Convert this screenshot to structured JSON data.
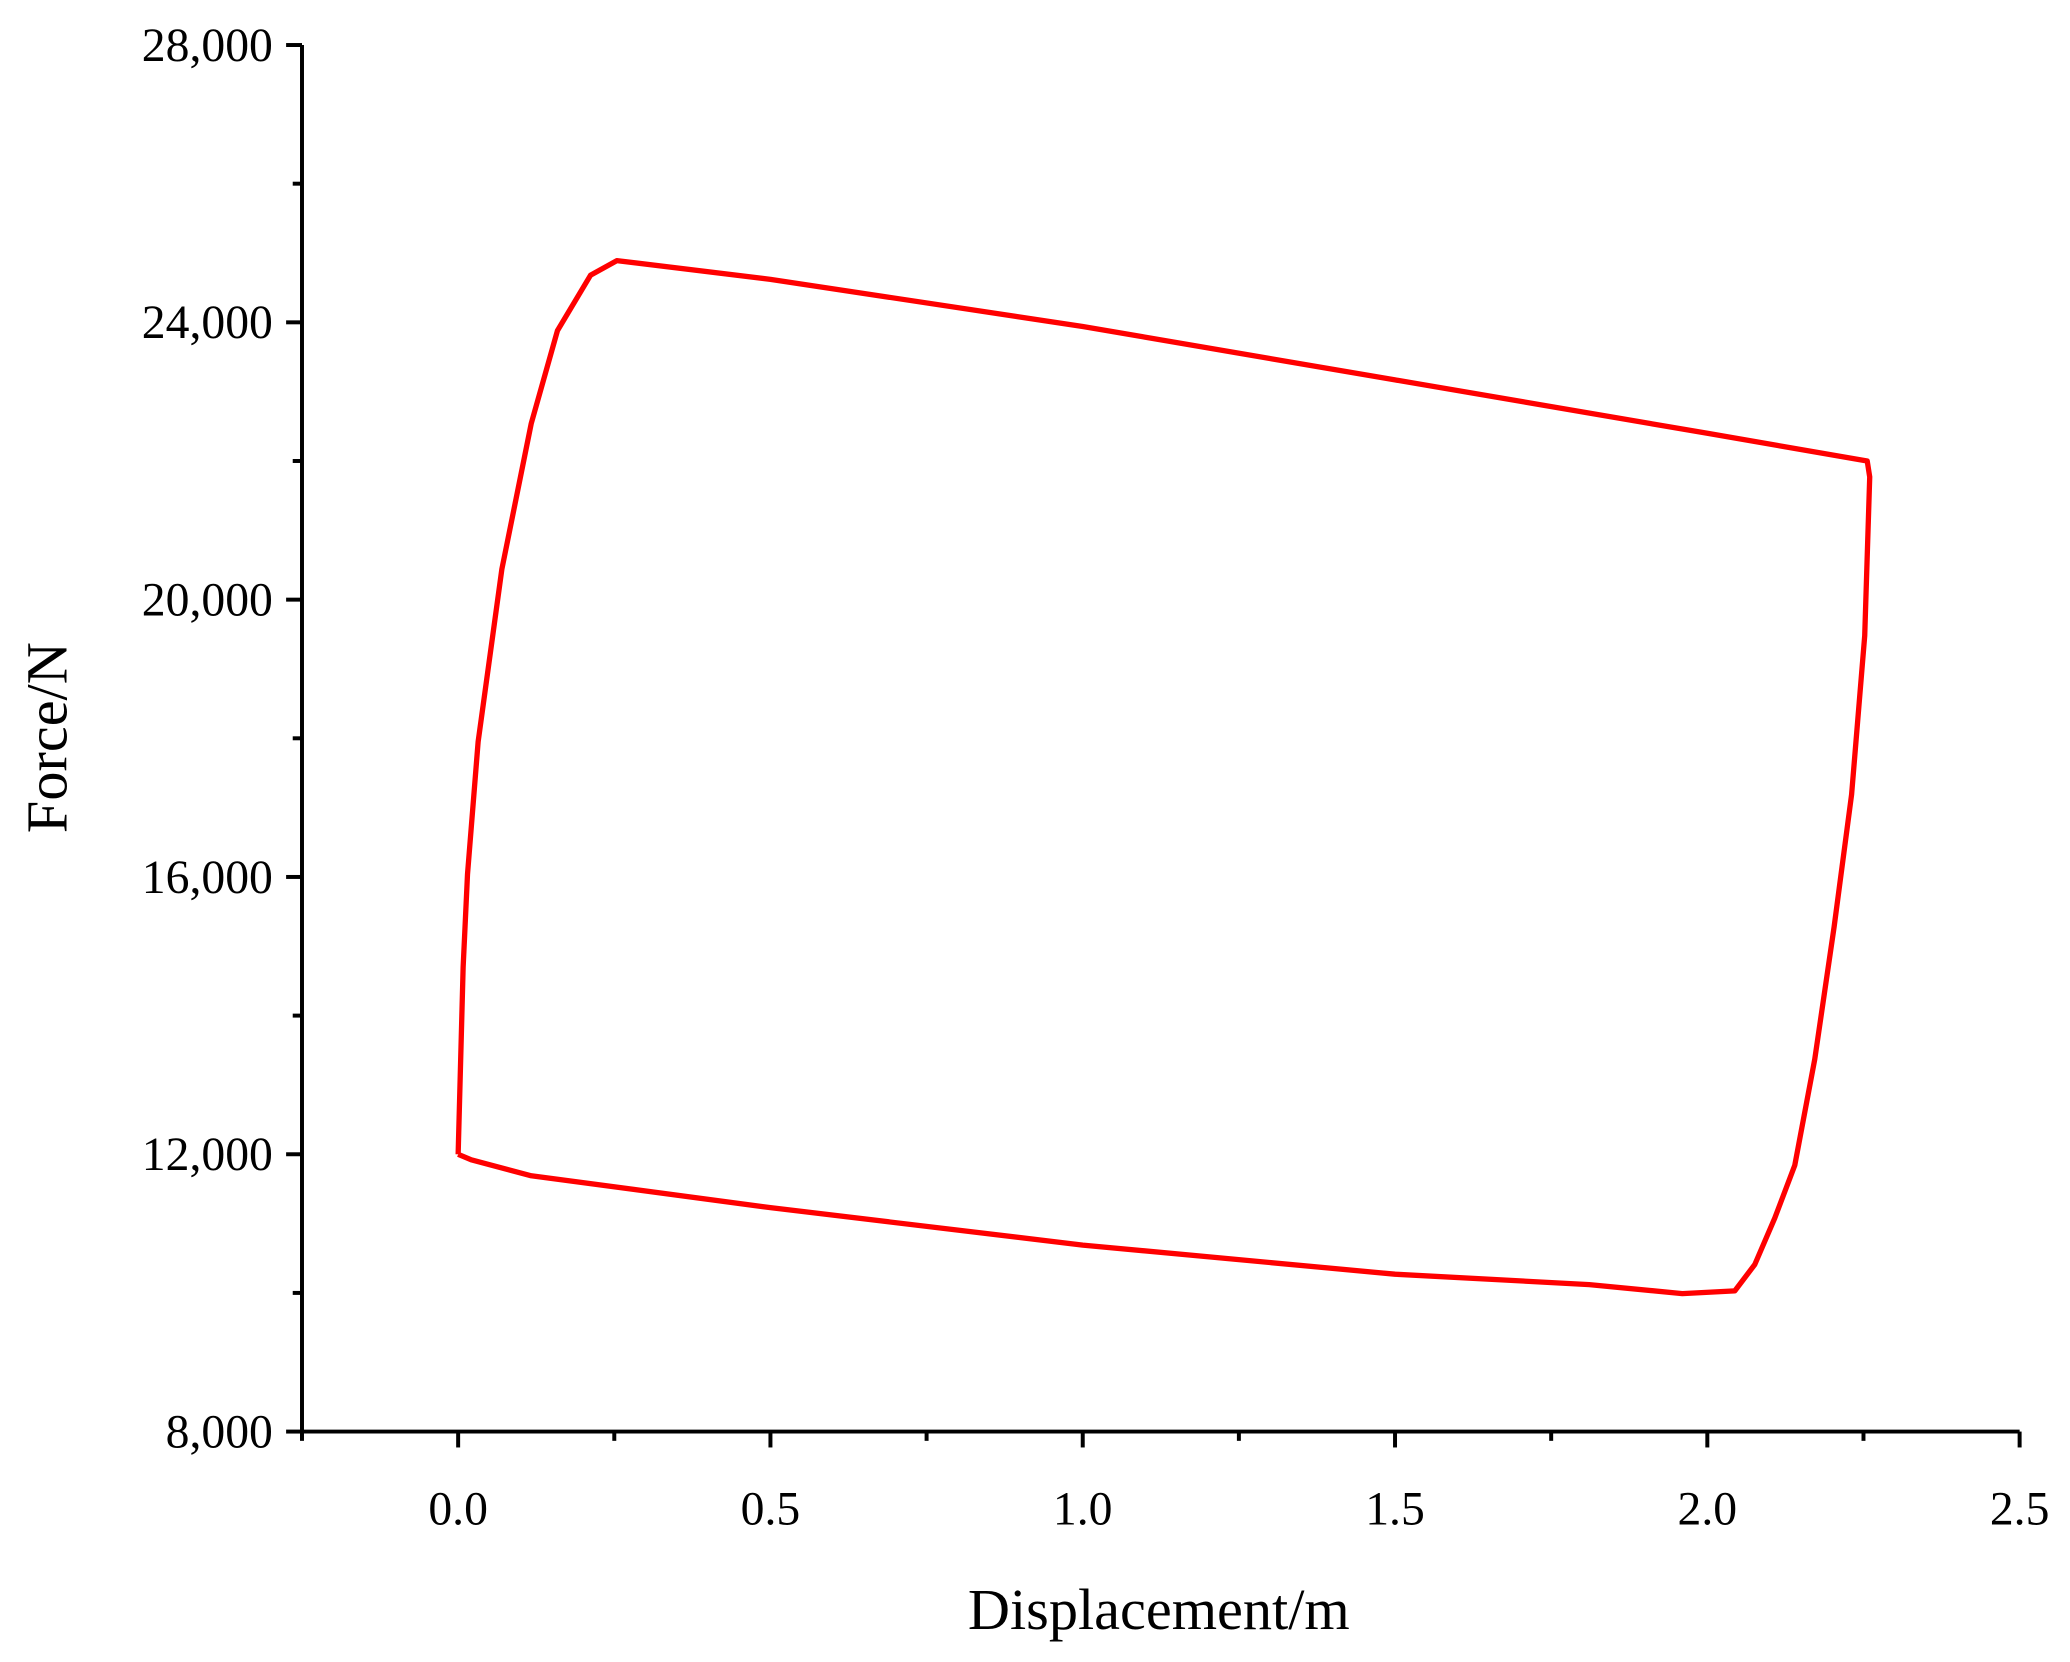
{
  "chart_data": {
    "type": "line",
    "xlabel": "Displacement/m",
    "ylabel": "Force/N",
    "x": [
      0,
      0.008,
      0.015,
      0.032,
      0.07,
      0.117,
      0.159,
      0.212,
      0.254,
      0.5,
      1.0,
      1.5,
      2.0,
      2.256,
      2.26,
      2.252,
      2.231,
      2.203,
      2.172,
      2.14,
      2.108,
      2.076,
      2.044,
      1.96,
      1.811,
      1.5,
      1.0,
      0.5,
      0.117,
      0.021,
      0
    ],
    "values": [
      12000,
      14700,
      16040,
      17950,
      20440,
      22540,
      23880,
      24680,
      24890,
      24620,
      23940,
      23170,
      22400,
      22000,
      21770,
      19480,
      17190,
      15280,
      13370,
      11840,
      11080,
      10410,
      10030,
      9990,
      10120,
      10270,
      10690,
      11230,
      11690,
      11920,
      12000
    ],
    "color": "#ff0000",
    "xlim": [
      -0.25,
      2.5
    ],
    "xticks": [
      {
        "value": 0,
        "label": "0.0"
      },
      0.5,
      {
        "value": 1,
        "label": "1.0"
      },
      1.5,
      {
        "value": 2,
        "label": "2.0"
      },
      2.5
    ],
    "xminorticks": [
      -0.25,
      0.25,
      0.75,
      1.25,
      1.75,
      2.25
    ],
    "ylim": [
      8000,
      28000
    ],
    "yticks": [
      {
        "value": 8000,
        "label": "8,000"
      },
      {
        "value": 12000,
        "label": "12,000"
      },
      {
        "value": 16000,
        "label": "16,000"
      },
      {
        "value": 20000,
        "label": "20,000"
      },
      {
        "value": 24000,
        "label": "24,000"
      },
      {
        "value": 28000,
        "label": "28,000"
      }
    ],
    "yminorticks": [
      10000,
      14000,
      18000,
      22000,
      26000
    ]
  }
}
